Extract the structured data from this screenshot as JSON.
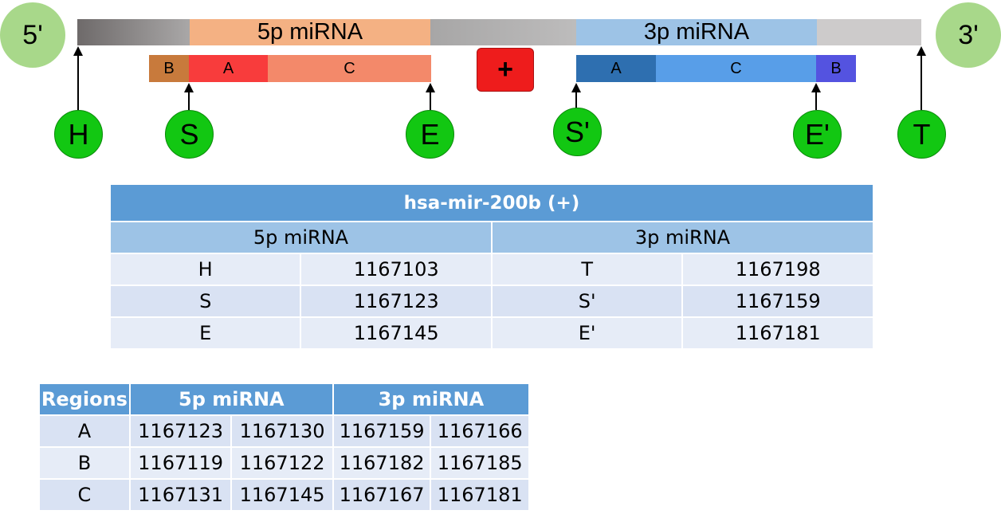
{
  "diagram": {
    "five_prime": "5'",
    "three_prime": "3'",
    "bar_5p_label": "5p miRNA",
    "bar_3p_label": "3p miRNA",
    "strand_symbol": "+",
    "regions_5p": {
      "b": "B",
      "a": "A",
      "c": "C"
    },
    "regions_3p": {
      "a": "A",
      "c": "C",
      "b": "B"
    },
    "markers": {
      "h": "H",
      "s": "S",
      "e": "E",
      "s_prime": "S'",
      "e_prime": "E'",
      "t": "T"
    },
    "colors": {
      "end_circle": "#a8d88a",
      "marker_circle": "#12c712",
      "strand_box": "#ee1c1c",
      "region_b_5p": "#c87a3c",
      "region_a_5p": "#f83c3c",
      "region_c_5p": "#f3896a",
      "region_a_3p": "#2e6fb0",
      "region_c_3p": "#589ee8",
      "region_b_3p": "#5453e0"
    }
  },
  "coords_table": {
    "title": "hsa-mir-200b (+)",
    "header_5p": "5p miRNA",
    "header_3p": "3p miRNA",
    "rows": [
      {
        "l1": "H",
        "v1": "1167103",
        "l2": "T",
        "v2": "1167198"
      },
      {
        "l1": "S",
        "v1": "1167123",
        "l2": "S'",
        "v2": "1167159"
      },
      {
        "l1": "E",
        "v1": "1167145",
        "l2": "E'",
        "v2": "1167181"
      }
    ]
  },
  "regions_table": {
    "header_regions": "Regions",
    "header_5p": "5p miRNA",
    "header_3p": "3p miRNA",
    "rows": [
      {
        "region": "A",
        "p5_start": "1167123",
        "p5_end": "1167130",
        "p3_start": "1167159",
        "p3_end": "1167166"
      },
      {
        "region": "B",
        "p5_start": "1167119",
        "p5_end": "1167122",
        "p3_start": "1167182",
        "p3_end": "1167185"
      },
      {
        "region": "C",
        "p5_start": "1167131",
        "p5_end": "1167145",
        "p3_start": "1167167",
        "p3_end": "1167181"
      }
    ]
  }
}
